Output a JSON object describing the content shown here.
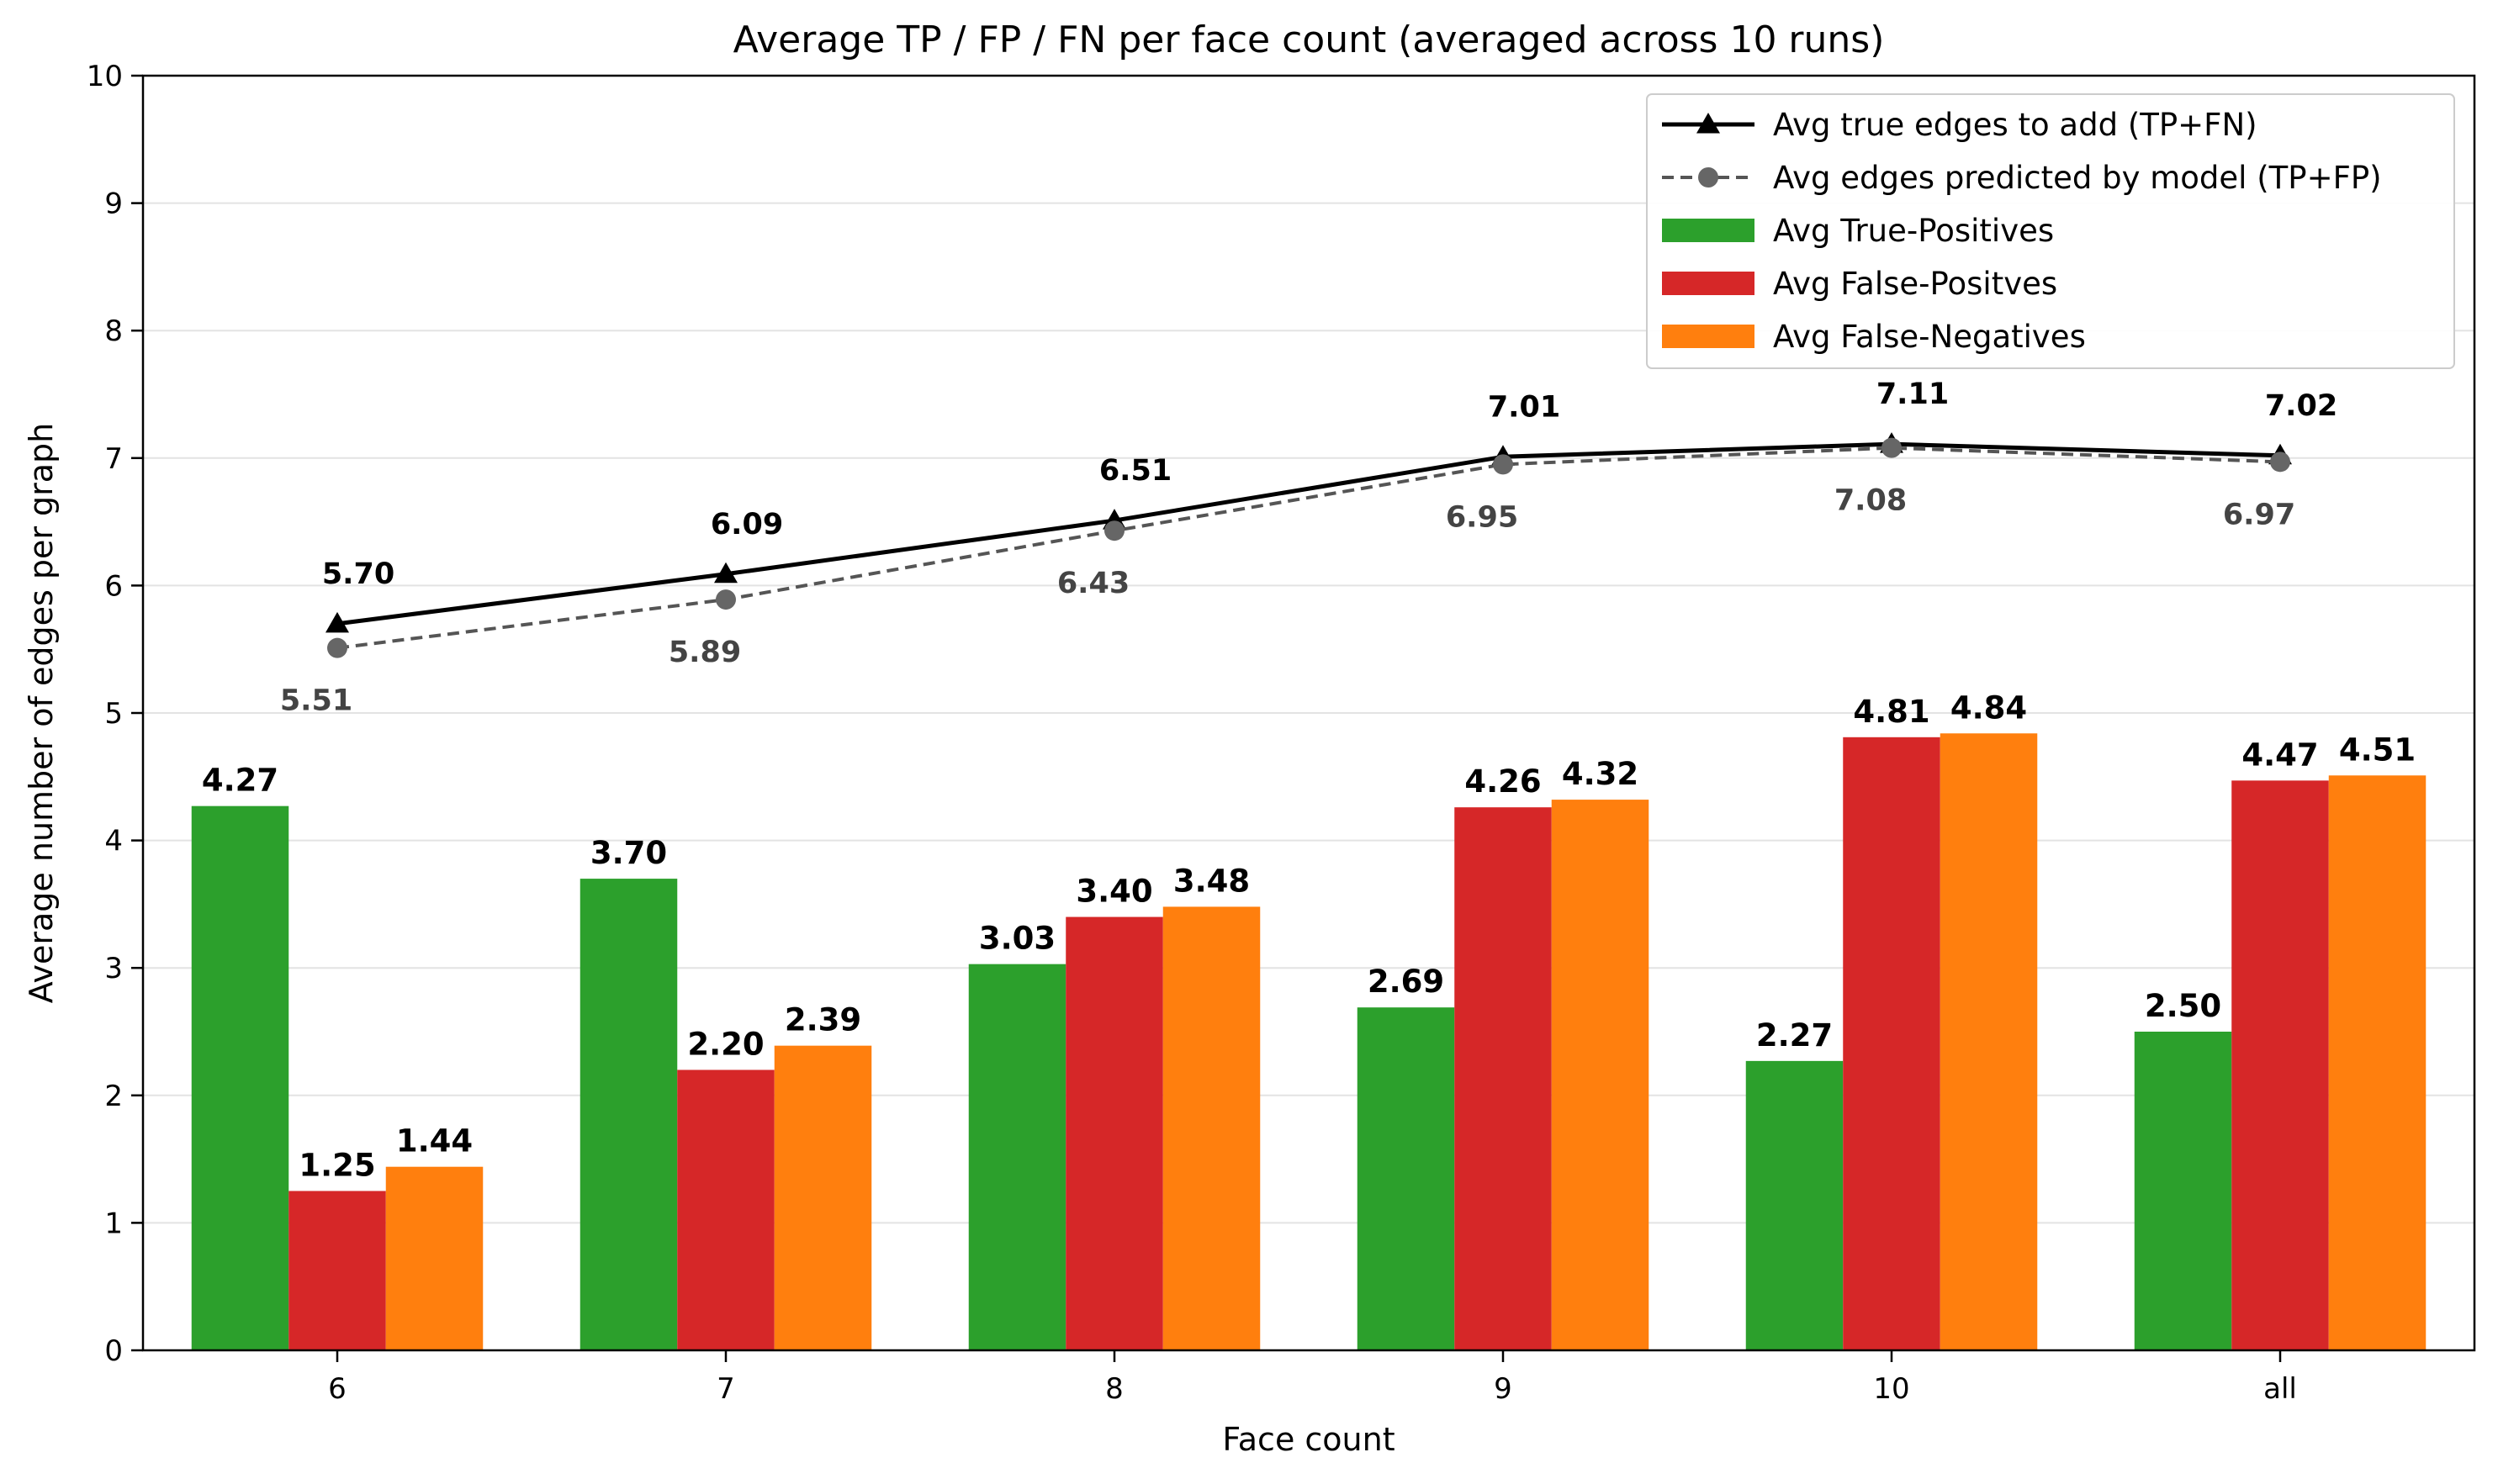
{
  "chart_data": {
    "type": "bar",
    "title": "Average TP / FP / FN per face count (averaged across 10 runs)",
    "xlabel": "Face count",
    "ylabel": "Average number of edges per graph",
    "ylim": [
      0,
      10
    ],
    "yticks": [
      "0",
      "1",
      "2",
      "3",
      "4",
      "5",
      "6",
      "7",
      "8",
      "9",
      "10"
    ],
    "grid": "horizontal",
    "legend_position": "top-right",
    "categories": [
      "6",
      "7",
      "8",
      "9",
      "10",
      "all"
    ],
    "series": [
      {
        "name": "Avg True-Positives",
        "type": "bar",
        "color": "#2ca02c",
        "values": [
          4.27,
          3.7,
          3.03,
          2.69,
          2.27,
          2.5
        ],
        "labels": [
          "4.27",
          "3.70",
          "3.03",
          "2.69",
          "2.27",
          "2.50"
        ]
      },
      {
        "name": "Avg False-Positves",
        "type": "bar",
        "color": "#d62728",
        "values": [
          1.25,
          2.2,
          3.4,
          4.26,
          4.81,
          4.47
        ],
        "labels": [
          "1.25",
          "2.20",
          "3.40",
          "4.26",
          "4.81",
          "4.47"
        ]
      },
      {
        "name": "Avg False-Negatives",
        "type": "bar",
        "color": "#ff7f0e",
        "values": [
          1.44,
          2.39,
          3.48,
          4.32,
          4.84,
          4.51
        ],
        "labels": [
          "1.44",
          "2.39",
          "3.48",
          "4.32",
          "4.84",
          "4.51"
        ]
      },
      {
        "name": "Avg true edges to add (TP+FN)",
        "type": "line",
        "marker": "triangle",
        "style": "solid",
        "color": "#000000",
        "values": [
          5.7,
          6.09,
          6.51,
          7.01,
          7.11,
          7.02
        ],
        "labels": [
          "5.70",
          "6.09",
          "6.51",
          "7.01",
          "7.11",
          "7.02"
        ]
      },
      {
        "name": "Avg edges predicted by model (TP+FP)",
        "type": "line",
        "marker": "circle",
        "style": "dashed",
        "color": "#555555",
        "values": [
          5.51,
          5.89,
          6.43,
          6.95,
          7.08,
          6.97
        ],
        "labels": [
          "5.51",
          "5.89",
          "6.43",
          "6.95",
          "7.08",
          "6.97"
        ]
      }
    ],
    "legend_order": [
      3,
      4,
      0,
      1,
      2
    ]
  }
}
